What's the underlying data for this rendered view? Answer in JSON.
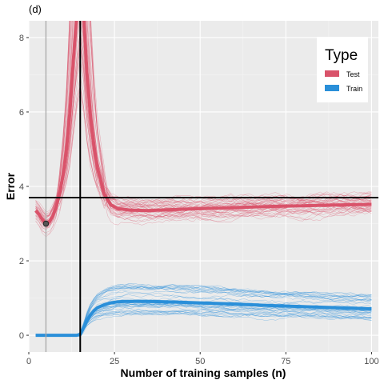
{
  "panel_label": "(d)",
  "chart_data": {
    "type": "line",
    "xlabel": "Number of training samples (n)",
    "ylabel": "Error",
    "xlim": [
      0,
      102
    ],
    "ylim": [
      -0.45,
      8.45
    ],
    "x_ticks": [
      0,
      25,
      50,
      75,
      100
    ],
    "y_ticks": [
      0,
      2,
      4,
      6,
      8
    ],
    "grid": true,
    "legend": {
      "title": "Type",
      "placement": "top-right",
      "entries": [
        {
          "label": "Test",
          "color": "#D9536A"
        },
        {
          "label": "Train",
          "color": "#2A8FD9"
        }
      ]
    },
    "reference_lines": {
      "vertical_gray": 5,
      "vertical_black": 15,
      "horizontal_black": 3.7
    },
    "highlight_point": {
      "x": 5,
      "y": 3.0
    },
    "series": [
      {
        "name": "Test",
        "color": "#D9536A",
        "x": [
          2,
          3,
          4,
          5,
          6,
          7,
          8,
          9,
          10,
          11,
          12,
          13,
          14,
          15,
          16,
          17,
          18,
          19,
          20,
          22,
          24,
          26,
          30,
          35,
          40,
          50,
          60,
          70,
          80,
          90,
          100
        ],
        "values": [
          3.35,
          3.25,
          3.1,
          3.0,
          3.05,
          3.2,
          3.45,
          3.8,
          4.3,
          5.0,
          6.0,
          7.4,
          8.6,
          9.5,
          8.6,
          7.0,
          5.9,
          5.1,
          4.5,
          3.8,
          3.5,
          3.4,
          3.36,
          3.35,
          3.37,
          3.4,
          3.43,
          3.46,
          3.48,
          3.5,
          3.52
        ]
      },
      {
        "name": "Train",
        "color": "#2A8FD9",
        "x": [
          2,
          4,
          6,
          8,
          10,
          12,
          14,
          15,
          16,
          17,
          18,
          19,
          20,
          22,
          24,
          26,
          28,
          30,
          35,
          40,
          50,
          60,
          70,
          80,
          90,
          100
        ],
        "values": [
          0,
          0,
          0,
          0,
          0,
          0,
          0,
          0.02,
          0.2,
          0.4,
          0.55,
          0.66,
          0.74,
          0.82,
          0.87,
          0.9,
          0.91,
          0.91,
          0.91,
          0.9,
          0.87,
          0.84,
          0.8,
          0.77,
          0.74,
          0.71
        ]
      }
    ]
  }
}
